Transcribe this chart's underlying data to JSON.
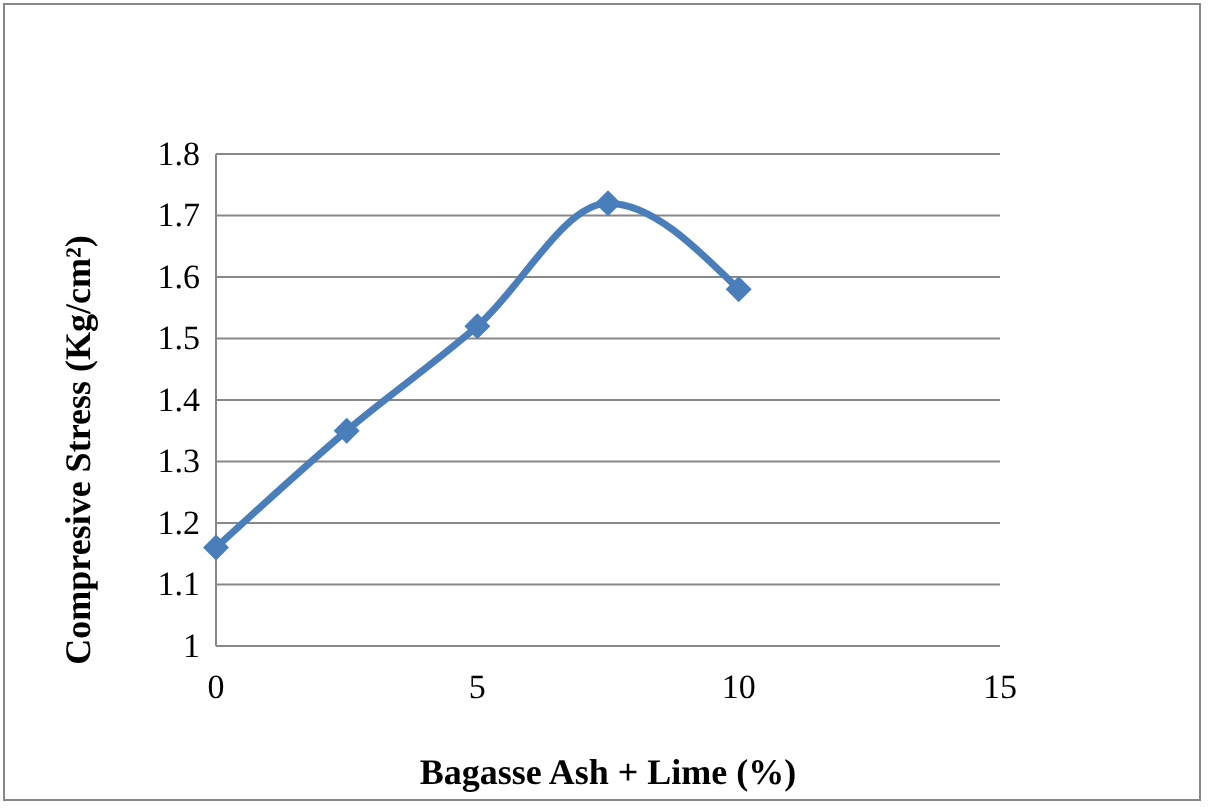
{
  "chart_data": {
    "type": "line",
    "xlabel": "Bagasse Ash + Lime (%)",
    "ylabel": "Compresive Stress (Kg/cm²)",
    "x": [
      0,
      2.5,
      5,
      7.5,
      10
    ],
    "series": [
      {
        "color": "#4a7ebb",
        "values": [
          1.16,
          1.35,
          1.52,
          1.72,
          1.58
        ]
      }
    ],
    "xlim": [
      0,
      15
    ],
    "xticks": [
      0,
      5,
      10,
      15
    ],
    "ylim": [
      1,
      1.8
    ],
    "yticks": [
      1,
      1.1,
      1.2,
      1.3,
      1.4,
      1.5,
      1.6,
      1.7,
      1.8
    ],
    "grid": "y",
    "marker": "diamond",
    "line_style": "solid",
    "legend": false
  }
}
